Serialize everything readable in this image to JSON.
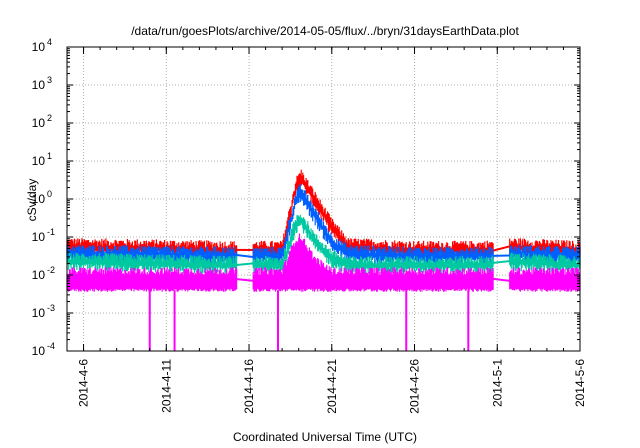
{
  "chart_data": {
    "type": "line",
    "title": "/data/run/goesPlots/archive/2014-05-05/flux/../bryn/31daysEarthData.plot",
    "xlabel": "Coordinated Universal Time (UTC)",
    "ylabel": "cSv/day",
    "x_tick_labels": [
      "2014-4-6",
      "2014-4-11",
      "2014-4-16",
      "2014-4-21",
      "2014-4-26",
      "2014-5-1",
      "2014-5-6"
    ],
    "xlim": [
      "2014-04-05",
      "2014-05-06"
    ],
    "y_scale": "log",
    "ylim": [
      0.0001,
      10000
    ],
    "y_tick_labels": [
      {
        "base": "10",
        "exp": "-4"
      },
      {
        "base": "10",
        "exp": "-3"
      },
      {
        "base": "10",
        "exp": "-2"
      },
      {
        "base": "10",
        "exp": "-1"
      },
      {
        "base": "10",
        "exp": "0"
      },
      {
        "base": "10",
        "exp": "1"
      },
      {
        "base": "10",
        "exp": "2"
      },
      {
        "base": "10",
        "exp": "3"
      },
      {
        "base": "10",
        "exp": "4"
      }
    ],
    "grid": true,
    "legend": "none",
    "data_gaps": [
      [
        "2014-04-15T06:00",
        "2014-04-16T06:00"
      ],
      [
        "2014-04-30T18:00",
        "2014-05-01T18:00"
      ]
    ],
    "event_peak": {
      "x": "2014-04-19T03:00",
      "y": 5
    },
    "series": [
      {
        "color": "#ff0000",
        "x": [
          "2014-04-05",
          "2014-04-15",
          "2014-04-16",
          "2014-04-18",
          "2014-04-19",
          "2014-04-20",
          "2014-04-21",
          "2014-04-22",
          "2014-04-26",
          "2014-04-30",
          "2014-05-02",
          "2014-05-06"
        ],
        "y": [
          0.06,
          0.05,
          0.05,
          0.05,
          5,
          1,
          0.2,
          0.06,
          0.05,
          0.05,
          0.06,
          0.05
        ]
      },
      {
        "color": "#0060ff",
        "x": [
          "2014-04-05",
          "2014-04-15",
          "2014-04-16",
          "2014-04-18",
          "2014-04-19",
          "2014-04-20",
          "2014-04-21",
          "2014-04-22",
          "2014-04-26",
          "2014-04-30",
          "2014-05-02",
          "2014-05-06"
        ],
        "y": [
          0.04,
          0.035,
          0.035,
          0.035,
          2,
          0.4,
          0.08,
          0.04,
          0.035,
          0.035,
          0.04,
          0.035
        ]
      },
      {
        "color": "#00c8a0",
        "x": [
          "2014-04-05",
          "2014-04-15",
          "2014-04-16",
          "2014-04-18",
          "2014-04-19",
          "2014-04-20",
          "2014-04-21",
          "2014-04-22",
          "2014-04-26",
          "2014-04-30",
          "2014-05-02",
          "2014-05-06"
        ],
        "y": [
          0.025,
          0.02,
          0.02,
          0.02,
          0.4,
          0.08,
          0.03,
          0.02,
          0.02,
          0.02,
          0.025,
          0.02
        ]
      },
      {
        "color": "#ff00ff",
        "x": [
          "2014-04-05",
          "2014-04-15",
          "2014-04-16",
          "2014-04-18",
          "2014-04-19",
          "2014-04-20",
          "2014-04-21",
          "2014-04-22",
          "2014-04-26",
          "2014-04-30",
          "2014-05-02",
          "2014-05-06"
        ],
        "y": [
          0.01,
          0.01,
          0.01,
          0.01,
          0.1,
          0.02,
          0.01,
          0.01,
          0.01,
          0.01,
          0.01,
          0.01
        ],
        "floor": 0.004
      }
    ],
    "dips": [
      {
        "x": "2014-04-10T00:00",
        "y": 0.0001
      },
      {
        "x": "2014-04-11T12:00",
        "y": 0.0001
      },
      {
        "x": "2014-04-17T18:00",
        "y": 0.0001
      },
      {
        "x": "2014-04-25T12:00",
        "y": 0.0001
      },
      {
        "x": "2014-04-29T06:00",
        "y": 0.0001
      }
    ]
  }
}
